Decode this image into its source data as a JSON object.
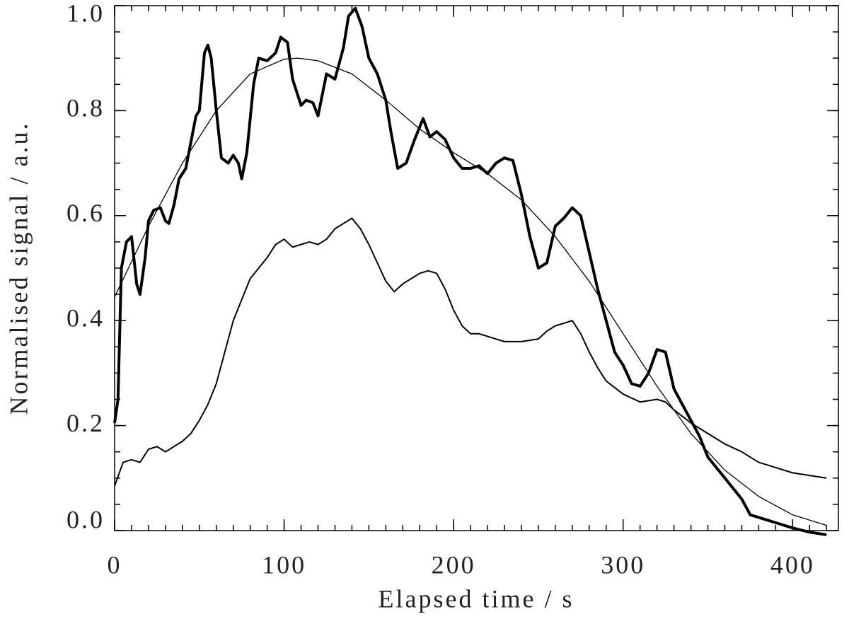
{
  "chart_data": {
    "type": "line",
    "xlabel": "Elapsed time / s",
    "ylabel": "Normalised signal / a.u.",
    "xlim": [
      0,
      427
    ],
    "ylim": [
      0,
      1.0
    ],
    "xticks": [
      0,
      100,
      200,
      300,
      400
    ],
    "yticks": [
      {
        "value": 0,
        "label": "0.0"
      },
      0.2,
      0.4,
      0.6,
      0.8,
      {
        "value": 1.0,
        "label": "1.0"
      }
    ],
    "xminor": 10,
    "yminor": 0.05,
    "grid": false,
    "series": [
      {
        "color": "#000000",
        "width": 4,
        "x": [
          0,
          2,
          4,
          7,
          10,
          13,
          15,
          18,
          20,
          23,
          27,
          30,
          32,
          35,
          38,
          42,
          45,
          48,
          50,
          53,
          55,
          57,
          60,
          63,
          67,
          70,
          73,
          75,
          78,
          82,
          85,
          90,
          95,
          98,
          102,
          105,
          110,
          113,
          117,
          120,
          125,
          130,
          135,
          138,
          142,
          146,
          150,
          155,
          160,
          163,
          167,
          172,
          177,
          182,
          186,
          190,
          195,
          200,
          205,
          210,
          215,
          220,
          225,
          230,
          235,
          240,
          245,
          250,
          255,
          260,
          265,
          270,
          275,
          280,
          285,
          290,
          295,
          300,
          305,
          310,
          315,
          320,
          325,
          330,
          335,
          340,
          345,
          350,
          360,
          370,
          375,
          380,
          390,
          400,
          410,
          420
        ],
        "values": [
          0.205,
          0.25,
          0.5,
          0.55,
          0.56,
          0.47,
          0.45,
          0.52,
          0.59,
          0.61,
          0.615,
          0.59,
          0.585,
          0.62,
          0.67,
          0.69,
          0.74,
          0.79,
          0.8,
          0.91,
          0.925,
          0.9,
          0.8,
          0.71,
          0.7,
          0.715,
          0.7,
          0.67,
          0.72,
          0.85,
          0.9,
          0.895,
          0.91,
          0.94,
          0.93,
          0.86,
          0.81,
          0.82,
          0.815,
          0.79,
          0.87,
          0.86,
          0.92,
          0.98,
          0.995,
          0.96,
          0.9,
          0.87,
          0.82,
          0.76,
          0.69,
          0.7,
          0.745,
          0.785,
          0.75,
          0.76,
          0.745,
          0.71,
          0.69,
          0.69,
          0.695,
          0.68,
          0.7,
          0.71,
          0.705,
          0.64,
          0.56,
          0.5,
          0.51,
          0.58,
          0.595,
          0.615,
          0.6,
          0.53,
          0.46,
          0.4,
          0.34,
          0.315,
          0.28,
          0.275,
          0.3,
          0.345,
          0.34,
          0.27,
          0.24,
          0.21,
          0.18,
          0.14,
          0.1,
          0.06,
          0.03,
          0.025,
          0.015,
          0.005,
          -0.003,
          -0.008
        ]
      },
      {
        "color": "#000000",
        "width": 2,
        "x": [
          0,
          5,
          10,
          15,
          20,
          25,
          30,
          35,
          40,
          45,
          50,
          55,
          60,
          65,
          70,
          75,
          80,
          85,
          90,
          95,
          100,
          105,
          110,
          115,
          120,
          125,
          130,
          135,
          140,
          145,
          150,
          155,
          160,
          165,
          170,
          175,
          180,
          185,
          190,
          195,
          200,
          205,
          210,
          215,
          220,
          225,
          230,
          240,
          250,
          255,
          260,
          265,
          270,
          275,
          280,
          285,
          290,
          300,
          310,
          320,
          325,
          330,
          340,
          350,
          360,
          370,
          380,
          390,
          400,
          410,
          420
        ],
        "values": [
          0.085,
          0.13,
          0.135,
          0.13,
          0.155,
          0.16,
          0.15,
          0.16,
          0.17,
          0.185,
          0.21,
          0.24,
          0.28,
          0.34,
          0.4,
          0.44,
          0.48,
          0.5,
          0.52,
          0.545,
          0.555,
          0.54,
          0.545,
          0.55,
          0.545,
          0.555,
          0.575,
          0.585,
          0.595,
          0.575,
          0.545,
          0.51,
          0.475,
          0.455,
          0.47,
          0.48,
          0.49,
          0.495,
          0.49,
          0.46,
          0.42,
          0.39,
          0.375,
          0.375,
          0.37,
          0.365,
          0.36,
          0.36,
          0.365,
          0.38,
          0.39,
          0.395,
          0.4,
          0.375,
          0.34,
          0.31,
          0.285,
          0.26,
          0.245,
          0.25,
          0.245,
          0.23,
          0.205,
          0.185,
          0.165,
          0.15,
          0.13,
          0.12,
          0.11,
          0.105,
          0.1
        ]
      },
      {
        "color": "#000000",
        "width": 1.3,
        "x": [
          0,
          20,
          40,
          60,
          80,
          100,
          108,
          120,
          140,
          160,
          180,
          200,
          220,
          240,
          260,
          280,
          300,
          320,
          340,
          360,
          380,
          400,
          420
        ],
        "values": [
          0.445,
          0.58,
          0.7,
          0.8,
          0.87,
          0.898,
          0.9,
          0.895,
          0.87,
          0.82,
          0.765,
          0.72,
          0.68,
          0.63,
          0.56,
          0.475,
          0.375,
          0.275,
          0.185,
          0.115,
          0.065,
          0.03,
          0.01
        ]
      }
    ]
  }
}
